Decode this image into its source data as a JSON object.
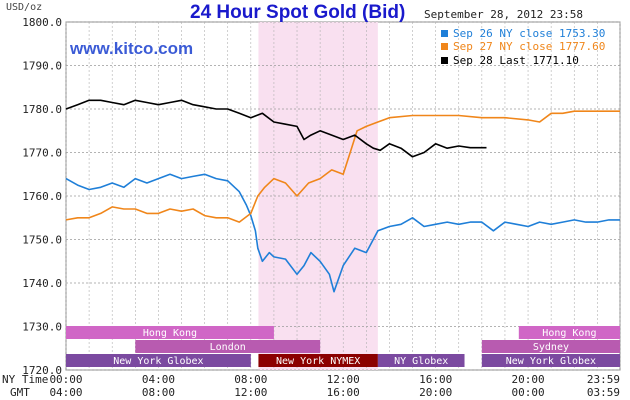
{
  "header": {
    "title": "24 Hour Spot Gold (Bid)",
    "timestamp": "September 28, 2012 23:58",
    "watermark": "www.kitco.com",
    "unit": "USD/oz"
  },
  "legend": [
    {
      "label": "Sep 26 NY close 1753.30",
      "color": "#1f7fd8"
    },
    {
      "label": "Sep 27 NY close 1777.60",
      "color": "#f0861a"
    },
    {
      "label": "Sep 28 Last 1771.10",
      "color": "#000000"
    }
  ],
  "axis_rows": {
    "ny_label": "NY Time",
    "gmt_label": "GMT",
    "ny_ticks": [
      "00:00",
      "04:00",
      "08:00",
      "12:00",
      "16:00",
      "20:00",
      "23:59"
    ],
    "gmt_ticks": [
      "04:00",
      "08:00",
      "12:00",
      "16:00",
      "20:00",
      "00:00",
      "03:59"
    ]
  },
  "sessions": [
    {
      "label": "Hong Kong",
      "row": 0,
      "start": 0.0,
      "end": 9.0,
      "color": "#d066c6"
    },
    {
      "label": "Hong Kong",
      "row": 0,
      "start": 19.6,
      "end": 23.98,
      "color": "#d066c6"
    },
    {
      "label": "London",
      "row": 1,
      "start": 3.0,
      "end": 11.0,
      "color": "#b85bb0"
    },
    {
      "label": "Sydney",
      "row": 1,
      "start": 18.0,
      "end": 23.98,
      "color": "#b85bb0"
    },
    {
      "label": "New York Globex",
      "row": 2,
      "start": 0.0,
      "end": 8.0,
      "color": "#7b4aa0"
    },
    {
      "label": "New York NYMEX",
      "row": 2,
      "start": 8.33,
      "end": 13.5,
      "color": "#8b0000"
    },
    {
      "label": "NY Globex",
      "row": 2,
      "start": 13.5,
      "end": 17.25,
      "color": "#7b4aa0"
    },
    {
      "label": "New York Globex",
      "row": 2,
      "start": 18.0,
      "end": 23.98,
      "color": "#7b4aa0"
    }
  ],
  "chart_data": {
    "type": "line",
    "title": "24 Hour Spot Gold (Bid)",
    "ylabel": "USD/oz",
    "xlabel": "NY Time / GMT",
    "ylim": [
      1720,
      1800
    ],
    "xlim": [
      0,
      23.98
    ],
    "yticks": [
      "1720.0",
      "1730.0",
      "1740.0",
      "1750.0",
      "1760.0",
      "1770.0",
      "1780.0",
      "1790.0",
      "1800.0"
    ],
    "highlight": {
      "start": 8.33,
      "end": 13.5,
      "color": "#f9e0f0"
    },
    "grid": true,
    "series": [
      {
        "name": "Sep 26 NY close 1753.30",
        "color": "#1f7fd8",
        "x": [
          0,
          0.5,
          1,
          1.5,
          2,
          2.5,
          3,
          3.5,
          4,
          4.5,
          5,
          5.5,
          6,
          6.5,
          7,
          7.5,
          7.8,
          8.0,
          8.2,
          8.3,
          8.5,
          8.8,
          9,
          9.5,
          10,
          10.3,
          10.6,
          11,
          11.4,
          11.6,
          12,
          12.5,
          13,
          13.5,
          14,
          14.5,
          15,
          15.5,
          16,
          16.5,
          17,
          17.5,
          18,
          18.5,
          19,
          19.5,
          20,
          20.5,
          21,
          21.5,
          22,
          22.5,
          23,
          23.5,
          23.98
        ],
        "y": [
          1764,
          1762.5,
          1761.5,
          1762,
          1763,
          1762,
          1764,
          1763,
          1764,
          1765,
          1764,
          1764.5,
          1765,
          1764,
          1763.5,
          1761,
          1758,
          1755.5,
          1752,
          1748,
          1745,
          1747,
          1746,
          1745.5,
          1742,
          1744,
          1747,
          1745,
          1742,
          1738,
          1744,
          1748,
          1747,
          1752,
          1753,
          1753.5,
          1755,
          1753,
          1753.5,
          1754,
          1753.5,
          1754,
          1754,
          1752,
          1754,
          1753.5,
          1753,
          1754,
          1753.5,
          1754,
          1754.5,
          1754,
          1754,
          1754.5,
          1754.5
        ]
      },
      {
        "name": "Sep 27 NY close 1777.60",
        "color": "#f0861a",
        "x": [
          0,
          0.5,
          1,
          1.5,
          2,
          2.5,
          3,
          3.5,
          4,
          4.5,
          5,
          5.5,
          6,
          6.5,
          7,
          7.5,
          8.0,
          8.3,
          8.6,
          9,
          9.5,
          10,
          10.5,
          11,
          11.5,
          12,
          12.3,
          12.6,
          13,
          13.5,
          14,
          15,
          16,
          17,
          18,
          19,
          20,
          20.5,
          21,
          21.5,
          22,
          23,
          23.98
        ],
        "y": [
          1754.5,
          1755,
          1755,
          1756,
          1757.5,
          1757,
          1757,
          1756,
          1756,
          1757,
          1756.5,
          1757,
          1755.5,
          1755,
          1755,
          1754,
          1756,
          1760,
          1762,
          1764,
          1763,
          1760,
          1763,
          1764,
          1766,
          1765,
          1770,
          1775,
          1776,
          1777,
          1778,
          1778.5,
          1778.5,
          1778.5,
          1778,
          1778,
          1777.5,
          1777,
          1779,
          1779,
          1779.5,
          1779.5,
          1779.5
        ]
      },
      {
        "name": "Sep 28 Last 1771.10",
        "color": "#000000",
        "x": [
          0,
          0.5,
          1,
          1.5,
          2,
          2.5,
          3,
          3.5,
          4,
          4.5,
          5,
          5.5,
          6,
          6.5,
          7,
          7.5,
          8,
          8.5,
          9,
          9.5,
          10,
          10.3,
          10.6,
          11,
          11.5,
          12,
          12.5,
          13,
          13.3,
          13.6,
          14,
          14.5,
          15,
          15.5,
          16,
          16.5,
          17,
          17.5,
          18.2
        ],
        "y": [
          1780,
          1781,
          1782,
          1782,
          1781.5,
          1781,
          1782,
          1781.5,
          1781,
          1781.5,
          1782,
          1781,
          1780.5,
          1780,
          1780,
          1779,
          1778,
          1779,
          1777,
          1776.5,
          1776,
          1773,
          1774,
          1775,
          1774,
          1773,
          1774,
          1772,
          1771,
          1770.5,
          1772,
          1771,
          1769,
          1770,
          1772,
          1771,
          1771.5,
          1771.1,
          1771.1
        ]
      }
    ]
  }
}
